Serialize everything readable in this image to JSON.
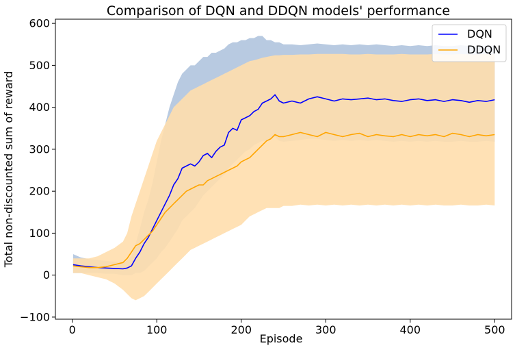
{
  "chart_data": {
    "type": "line",
    "title": "Comparison of DQN and DDQN models' performance",
    "xlabel": "Episode",
    "ylabel": "Total non-discounted sum of reward",
    "xlim": [
      -20,
      520
    ],
    "ylim": [
      -105,
      610
    ],
    "xticks": [
      0,
      100,
      200,
      300,
      400,
      500
    ],
    "yticks": [
      -100,
      0,
      100,
      200,
      300,
      400,
      500,
      600
    ],
    "grid": false,
    "legend": "top-right",
    "series": [
      {
        "name": "DQN",
        "color": "#0000ff",
        "band_color": "#b0c4de",
        "x": [
          1,
          10,
          20,
          30,
          40,
          50,
          60,
          65,
          70,
          75,
          80,
          85,
          90,
          95,
          100,
          105,
          110,
          115,
          120,
          125,
          130,
          135,
          140,
          145,
          150,
          155,
          160,
          165,
          170,
          175,
          180,
          185,
          190,
          195,
          200,
          205,
          210,
          215,
          220,
          225,
          230,
          235,
          240,
          245,
          250,
          260,
          270,
          280,
          290,
          300,
          310,
          320,
          330,
          340,
          350,
          360,
          370,
          380,
          390,
          400,
          410,
          420,
          430,
          440,
          450,
          460,
          470,
          480,
          490,
          500
        ],
        "mean": [
          25,
          22,
          20,
          18,
          17,
          16,
          15,
          17,
          22,
          40,
          55,
          75,
          90,
          110,
          130,
          150,
          170,
          190,
          215,
          230,
          255,
          260,
          265,
          260,
          270,
          285,
          290,
          280,
          295,
          305,
          310,
          340,
          350,
          345,
          370,
          375,
          380,
          390,
          395,
          410,
          415,
          420,
          430,
          415,
          410,
          415,
          410,
          420,
          425,
          420,
          415,
          420,
          418,
          420,
          422,
          418,
          420,
          416,
          414,
          418,
          420,
          416,
          418,
          414,
          418,
          416,
          412,
          416,
          414,
          418
        ],
        "upper": [
          50,
          42,
          38,
          36,
          34,
          32,
          30,
          35,
          45,
          75,
          110,
          150,
          180,
          220,
          270,
          320,
          360,
          400,
          430,
          460,
          480,
          490,
          500,
          500,
          510,
          520,
          520,
          530,
          530,
          535,
          540,
          550,
          555,
          555,
          560,
          560,
          565,
          565,
          570,
          570,
          560,
          560,
          555,
          555,
          550,
          550,
          548,
          550,
          552,
          550,
          548,
          550,
          548,
          550,
          548,
          550,
          548,
          546,
          548,
          546,
          548,
          546,
          548,
          546,
          546,
          548,
          546,
          546,
          548,
          546
        ],
        "lower": [
          5,
          5,
          5,
          5,
          3,
          3,
          0,
          0,
          0,
          5,
          5,
          10,
          20,
          30,
          40,
          55,
          65,
          80,
          95,
          110,
          130,
          140,
          150,
          160,
          175,
          190,
          200,
          210,
          220,
          230,
          240,
          255,
          265,
          275,
          285,
          295,
          300,
          310,
          315,
          320,
          320,
          325,
          330,
          320,
          318,
          320,
          322,
          325,
          325,
          322,
          320,
          322,
          320,
          322,
          320,
          322,
          320,
          318,
          320,
          318,
          320,
          318,
          320,
          318,
          318,
          320,
          318,
          318,
          320,
          318
        ]
      },
      {
        "name": "DDQN",
        "color": "#ffa500",
        "band_color": "#ffdead",
        "x": [
          1,
          10,
          20,
          30,
          40,
          50,
          60,
          65,
          70,
          75,
          80,
          85,
          90,
          95,
          100,
          105,
          110,
          115,
          120,
          125,
          130,
          135,
          140,
          145,
          150,
          155,
          160,
          165,
          170,
          175,
          180,
          185,
          190,
          195,
          200,
          205,
          210,
          215,
          220,
          225,
          230,
          235,
          240,
          245,
          250,
          260,
          270,
          280,
          290,
          300,
          310,
          320,
          330,
          340,
          350,
          360,
          370,
          380,
          390,
          400,
          410,
          420,
          430,
          440,
          450,
          460,
          470,
          480,
          490,
          500
        ],
        "mean": [
          22,
          20,
          18,
          18,
          20,
          25,
          30,
          40,
          55,
          70,
          75,
          85,
          95,
          105,
          120,
          135,
          150,
          160,
          170,
          180,
          190,
          200,
          205,
          210,
          215,
          215,
          225,
          230,
          235,
          240,
          245,
          250,
          255,
          260,
          270,
          275,
          280,
          290,
          300,
          310,
          320,
          325,
          335,
          330,
          330,
          335,
          340,
          335,
          330,
          340,
          335,
          330,
          335,
          338,
          330,
          335,
          332,
          330,
          335,
          330,
          335,
          332,
          335,
          330,
          338,
          335,
          330,
          335,
          332,
          335
        ],
        "upper": [
          40,
          40,
          40,
          45,
          55,
          65,
          80,
          100,
          140,
          170,
          200,
          230,
          260,
          290,
          320,
          340,
          360,
          380,
          400,
          410,
          420,
          430,
          440,
          445,
          450,
          455,
          460,
          465,
          470,
          475,
          480,
          485,
          490,
          495,
          500,
          505,
          510,
          512,
          515,
          518,
          520,
          522,
          524,
          524,
          525,
          525,
          526,
          526,
          527,
          527,
          527,
          527,
          526,
          526,
          527,
          526,
          526,
          526,
          527,
          526,
          526,
          526,
          527,
          526,
          526,
          527,
          526,
          526,
          527,
          526
        ],
        "lower": [
          5,
          5,
          0,
          -5,
          -10,
          -20,
          -35,
          -45,
          -55,
          -60,
          -55,
          -50,
          -40,
          -30,
          -20,
          -10,
          0,
          10,
          20,
          30,
          40,
          50,
          60,
          65,
          70,
          75,
          80,
          85,
          90,
          95,
          100,
          105,
          110,
          115,
          120,
          130,
          140,
          145,
          150,
          155,
          160,
          160,
          160,
          160,
          165,
          165,
          168,
          166,
          168,
          166,
          168,
          166,
          168,
          166,
          168,
          166,
          168,
          166,
          168,
          166,
          168,
          166,
          168,
          166,
          166,
          168,
          166,
          166,
          168,
          166
        ]
      }
    ]
  }
}
